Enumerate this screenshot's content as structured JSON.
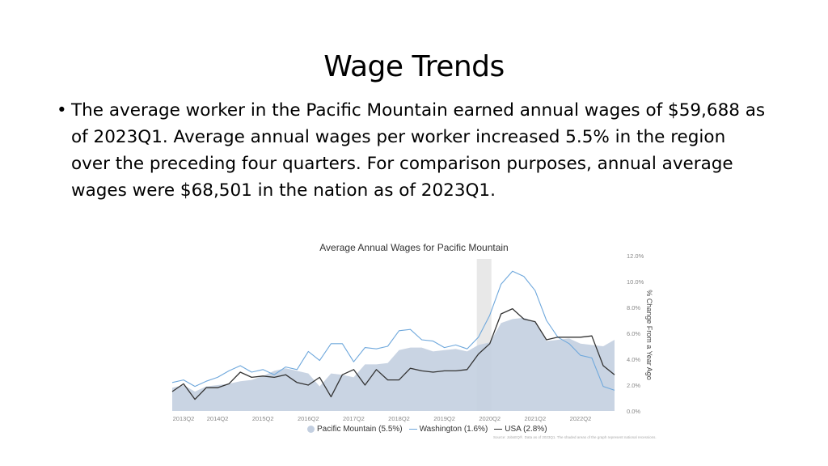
{
  "slide": {
    "title": "Wage Trends",
    "bullet_marker": "•",
    "bullet_text": "The average worker in the Pacific Mountain earned annual wages of $59,688 as of 2023Q1. Average annual wages per worker increased 5.5% in the region over the preceding four quarters. For comparison purposes, annual average wages were $68,501 in the nation as of 2023Q1."
  },
  "chart_data": {
    "type": "line",
    "title": "Average Annual Wages for Pacific Mountain",
    "ylabel": "% Change From a Year Ago",
    "ylim": [
      0,
      12
    ],
    "yticks": [
      "0.0%",
      "2.0%",
      "4.0%",
      "6.0%",
      "8.0%",
      "10.0%",
      "12.0%"
    ],
    "x_tick_labels": [
      "2013Q2",
      "2014Q2",
      "2015Q2",
      "2016Q2",
      "2017Q2",
      "2018Q2",
      "2019Q2",
      "2020Q2",
      "2021Q2",
      "2022Q2"
    ],
    "x": [
      "2013Q2",
      "2013Q3",
      "2013Q4",
      "2014Q1",
      "2014Q2",
      "2014Q3",
      "2014Q4",
      "2015Q1",
      "2015Q2",
      "2015Q3",
      "2015Q4",
      "2016Q1",
      "2016Q2",
      "2016Q3",
      "2016Q4",
      "2017Q1",
      "2017Q2",
      "2017Q3",
      "2017Q4",
      "2018Q1",
      "2018Q2",
      "2018Q3",
      "2018Q4",
      "2019Q1",
      "2019Q2",
      "2019Q3",
      "2019Q4",
      "2020Q1",
      "2020Q2",
      "2020Q3",
      "2020Q4",
      "2021Q1",
      "2021Q2",
      "2021Q3",
      "2021Q4",
      "2022Q1",
      "2022Q2",
      "2022Q3",
      "2022Q4",
      "2023Q1"
    ],
    "recession_shading": [
      "2020Q1",
      "2020Q2"
    ],
    "series": [
      {
        "name": "Pacific Mountain (5.5%)",
        "style": "area",
        "color": "#c3cfe0",
        "values": [
          1.8,
          2.0,
          1.5,
          1.9,
          2.0,
          2.1,
          2.3,
          2.4,
          2.7,
          3.1,
          3.3,
          3.1,
          2.9,
          1.9,
          2.9,
          2.8,
          2.6,
          3.6,
          3.6,
          3.7,
          4.7,
          4.9,
          4.9,
          4.6,
          4.7,
          4.8,
          4.6,
          5.1,
          5.3,
          6.8,
          7.1,
          7.2,
          6.9,
          5.4,
          5.5,
          5.6,
          5.2,
          5.1,
          5.0,
          5.5
        ]
      },
      {
        "name": "Washington (1.6%)",
        "style": "line",
        "color": "#6fa8dc",
        "values": [
          2.2,
          2.4,
          1.9,
          2.3,
          2.6,
          3.1,
          3.5,
          3.0,
          3.2,
          2.8,
          3.4,
          3.2,
          4.6,
          3.9,
          5.2,
          5.2,
          3.8,
          4.9,
          4.8,
          5.0,
          6.2,
          6.3,
          5.5,
          5.4,
          4.9,
          5.1,
          4.8,
          5.7,
          7.4,
          9.8,
          10.8,
          10.4,
          9.3,
          7.0,
          5.7,
          5.2,
          4.3,
          4.1,
          1.9,
          1.6
        ]
      },
      {
        "name": "USA (2.8%)",
        "style": "line",
        "color": "#333333",
        "values": [
          1.5,
          2.1,
          0.9,
          1.8,
          1.8,
          2.1,
          3.0,
          2.6,
          2.7,
          2.6,
          2.8,
          2.2,
          2.0,
          2.6,
          1.1,
          2.8,
          3.2,
          2.0,
          3.2,
          2.4,
          2.4,
          3.3,
          3.1,
          3.0,
          3.1,
          3.1,
          3.2,
          4.4,
          5.2,
          7.5,
          7.9,
          7.1,
          6.9,
          5.5,
          5.7,
          5.7,
          5.7,
          5.8,
          3.5,
          2.8
        ]
      }
    ],
    "legend_position": "bottom",
    "source_note": "Source: JobsEQ®. Data as of 2023Q1. The shaded areas of the graph represent national recessions."
  }
}
